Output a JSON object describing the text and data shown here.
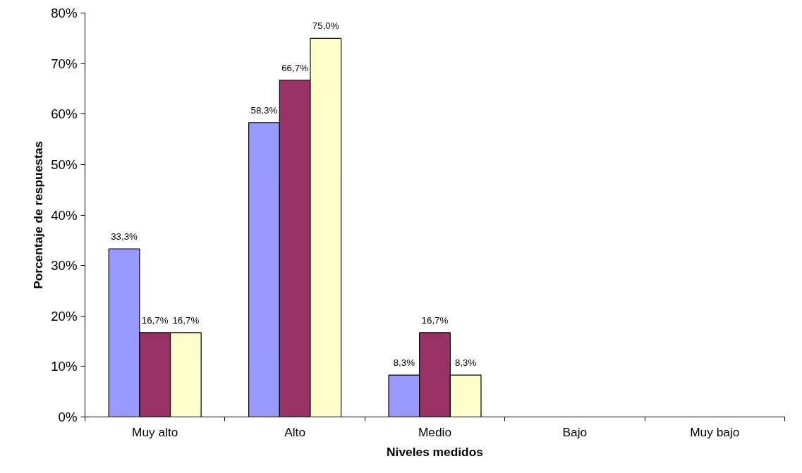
{
  "chart_data": {
    "type": "bar",
    "xlabel": "Niveles medidos",
    "ylabel": "Porcentaje de respuestas",
    "categories": [
      "Muy alto",
      "Alto",
      "Medio",
      "Bajo",
      "Muy bajo"
    ],
    "series": [
      {
        "color": "#9999ff",
        "values": [
          33.3,
          58.3,
          8.3,
          null,
          null
        ],
        "value_labels": [
          "33,3%",
          "58,3%",
          "8,3%",
          null,
          null
        ]
      },
      {
        "color": "#993366",
        "values": [
          16.7,
          66.7,
          16.7,
          null,
          null
        ],
        "value_labels": [
          "16,7%",
          "66,7%",
          "16,7%",
          null,
          null
        ]
      },
      {
        "color": "#ffffcc",
        "values": [
          16.7,
          75.0,
          8.3,
          null,
          null
        ],
        "value_labels": [
          "16,7%",
          "75,0%",
          "8,3%",
          null,
          null
        ]
      }
    ],
    "ylim": [
      0,
      80
    ],
    "yticks": [
      {
        "value": 0,
        "label": "0%"
      },
      {
        "value": 10,
        "label": "10%"
      },
      {
        "value": 20,
        "label": "20%"
      },
      {
        "value": 30,
        "label": "30%"
      },
      {
        "value": 40,
        "label": "40%"
      },
      {
        "value": 50,
        "label": "50%"
      },
      {
        "value": 60,
        "label": "60%"
      },
      {
        "value": 70,
        "label": "70%"
      },
      {
        "value": 80,
        "label": "80%"
      }
    ],
    "grid": false
  }
}
